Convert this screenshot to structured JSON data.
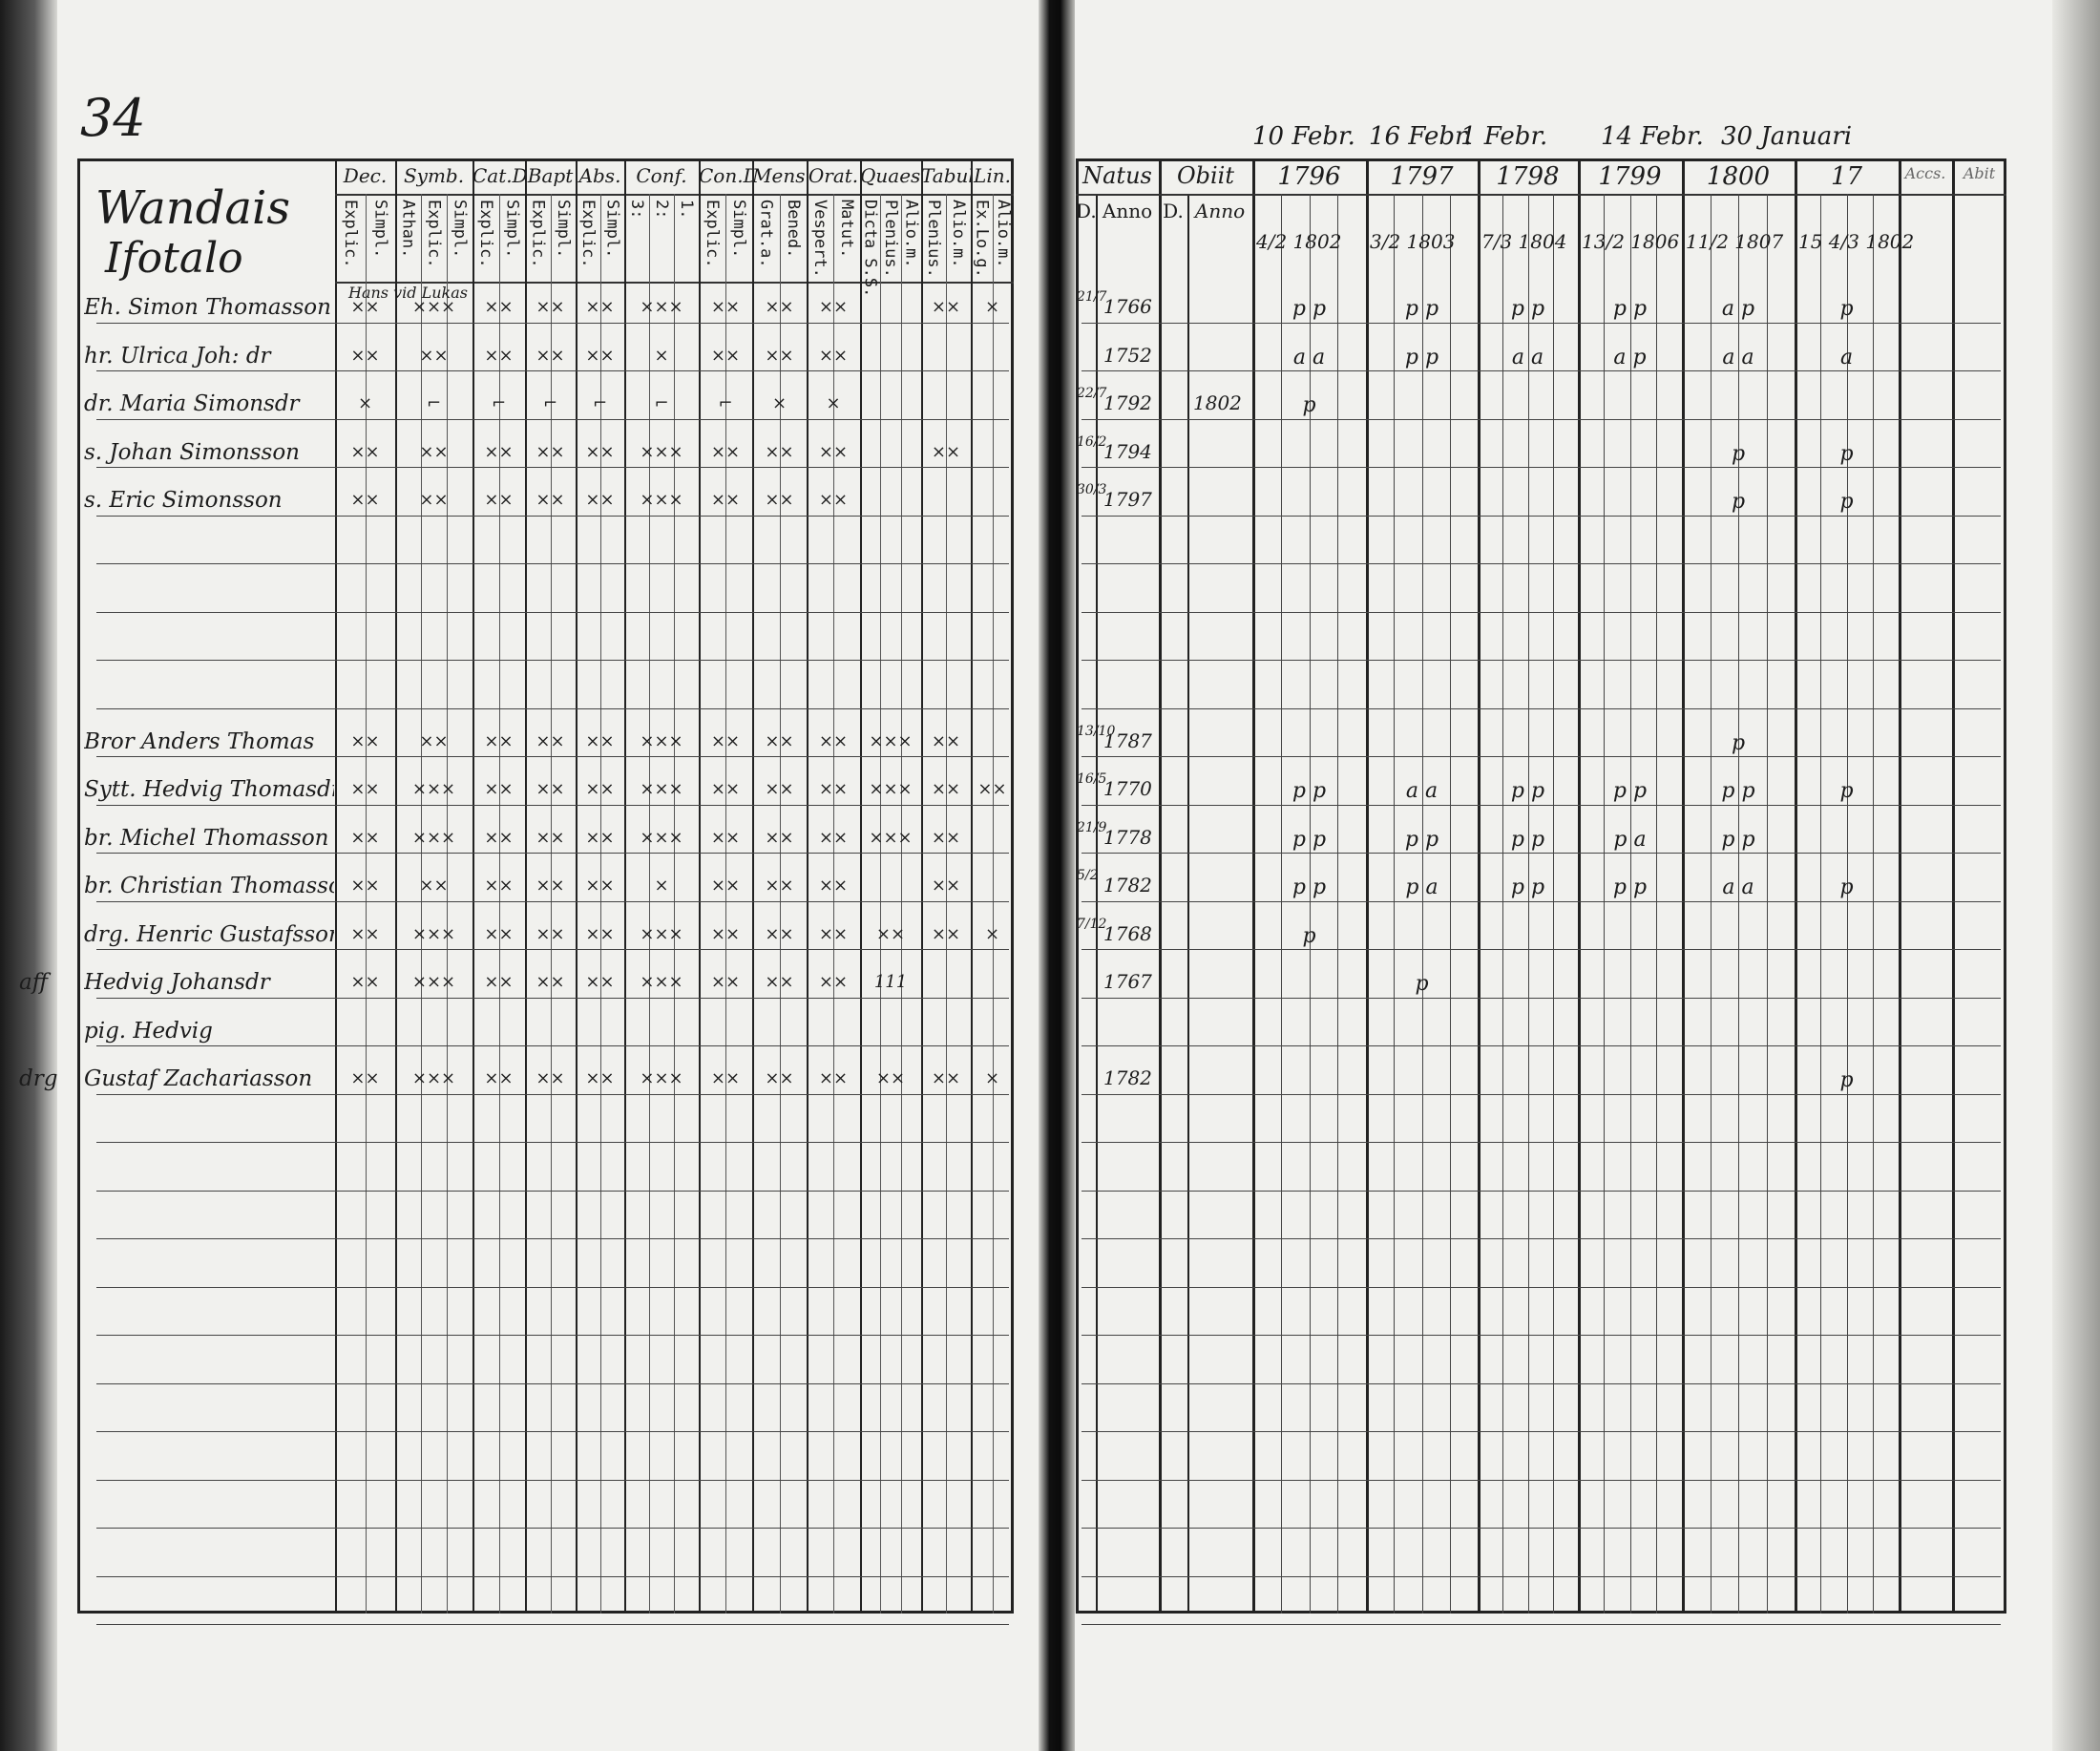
{
  "page_number": "34",
  "left": {
    "title": [
      "Wandais",
      "Ifotalo"
    ],
    "columns": [
      {
        "label": "Dec.",
        "subs": [
          "Explic.",
          "Simpl."
        ]
      },
      {
        "label": "Symb.",
        "subs": [
          "Athan.",
          "Explic.",
          "Simpl."
        ]
      },
      {
        "label": "Cat.D",
        "subs": [
          "Explic.",
          "Simpl."
        ]
      },
      {
        "label": "Bapt",
        "subs": [
          "Explic.",
          "Simpl."
        ]
      },
      {
        "label": "Abs.",
        "subs": [
          "Explic.",
          "Simpl."
        ]
      },
      {
        "label": "Conf.",
        "subs": [
          "3:",
          "2:",
          "1."
        ]
      },
      {
        "label": "Con.D",
        "subs": [
          "Explic.",
          "Simpl."
        ]
      },
      {
        "label": "Mens.",
        "subs": [
          "Grat.a.",
          "Bened."
        ]
      },
      {
        "label": "Orat.",
        "subs": [
          "Vespert.",
          "Matut."
        ]
      },
      {
        "label": "Quaest.",
        "subs": [
          "Dicta S.S.",
          "Plenius.",
          "Alio.m."
        ]
      },
      {
        "label": "Tabul.",
        "subs": [
          "Plenius.",
          "Alio.m."
        ]
      },
      {
        "label": "Lin.",
        "subs": [
          "Ex.Lo.g.",
          "Alio.m."
        ]
      }
    ],
    "note_row0": "Hans vid Lukas",
    "rows": [
      {
        "margin": "",
        "name": "Eh. Simon Thomasson",
        "marks": [
          "××",
          "×××",
          "××",
          "××",
          "××",
          "×××",
          "××",
          "××",
          "××",
          "",
          "××",
          "×"
        ]
      },
      {
        "margin": "",
        "name": "hr. Ulrica Joh: dr",
        "marks": [
          "××",
          "××",
          "××",
          "××",
          "××",
          "×",
          "××",
          "××",
          "××",
          "",
          "",
          ""
        ]
      },
      {
        "margin": "",
        "name": "dr. Maria Simonsdr",
        "marks": [
          "×",
          "⌐",
          "⌐",
          "⌐",
          "⌐",
          "⌐",
          "⌐",
          "×",
          "×",
          "",
          "",
          ""
        ]
      },
      {
        "margin": "",
        "name": "s. Johan Simonsson",
        "marks": [
          "××",
          "××",
          "××",
          "××",
          "××",
          "×××",
          "××",
          "××",
          "××",
          "",
          "××",
          ""
        ]
      },
      {
        "margin": "",
        "name": "s. Eric Simonsson",
        "marks": [
          "××",
          "××",
          "××",
          "××",
          "××",
          "×××",
          "××",
          "××",
          "××",
          "",
          "",
          ""
        ]
      },
      {
        "margin": "",
        "name": "",
        "marks": []
      },
      {
        "margin": "",
        "name": "",
        "marks": []
      },
      {
        "margin": "",
        "name": "",
        "marks": []
      },
      {
        "margin": "",
        "name": "",
        "marks": []
      },
      {
        "margin": "",
        "name": "Bror Anders Thomas",
        "marks": [
          "××",
          "××",
          "××",
          "××",
          "××",
          "×××",
          "××",
          "××",
          "××",
          "×××",
          "××",
          ""
        ]
      },
      {
        "margin": "",
        "name": "Sytt. Hedvig Thomasdr",
        "marks": [
          "××",
          "×××",
          "××",
          "××",
          "××",
          "×××",
          "××",
          "××",
          "××",
          "×××",
          "××",
          "××"
        ]
      },
      {
        "margin": "",
        "name": "br. Michel Thomasson",
        "marks": [
          "××",
          "×××",
          "××",
          "××",
          "××",
          "×××",
          "××",
          "××",
          "××",
          "×××",
          "××",
          ""
        ]
      },
      {
        "margin": "",
        "name": "br. Christian Thomasson",
        "marks": [
          "××",
          "××",
          "××",
          "××",
          "××",
          "×",
          "××",
          "××",
          "××",
          "",
          "××",
          ""
        ]
      },
      {
        "margin": "",
        "name": "drg. Henric Gustafsson",
        "marks": [
          "××",
          "×××",
          "××",
          "××",
          "××",
          "×××",
          "××",
          "××",
          "××",
          "××",
          "××",
          "×"
        ]
      },
      {
        "margin": "aff",
        "name": "Hedvig Johansdr",
        "marks": [
          "××",
          "×××",
          "××",
          "××",
          "××",
          "×××",
          "××",
          "××",
          "××",
          "111",
          "",
          ""
        ]
      },
      {
        "margin": "",
        "name": "pig. Hedvig",
        "marks": []
      },
      {
        "margin": "drg",
        "name": "Gustaf Zachariasson",
        "marks": [
          "××",
          "×××",
          "××",
          "××",
          "××",
          "×××",
          "××",
          "××",
          "××",
          "××",
          "××",
          "×"
        ]
      }
    ]
  },
  "right": {
    "dates_above": [
      "10 Febr.",
      "16 Febr.",
      "1 Febr.",
      "14 Febr.",
      "30 Januari"
    ],
    "natus_label": "Natus",
    "obiit_label": "Obiit",
    "d_label": "D.",
    "anno_label": "Anno",
    "years": [
      {
        "label": "1796",
        "sub": "4/2 1802"
      },
      {
        "label": "1797",
        "sub": "3/2 1803"
      },
      {
        "label": "1798",
        "sub": "7/3 1804"
      },
      {
        "label": "1799",
        "sub": "13/2 1806"
      },
      {
        "label": "1800",
        "sub": "11/2 1807"
      },
      {
        "label": "17",
        "sub": "15 4/3 1802"
      }
    ],
    "accs_label": "Accs.",
    "abit_label": "Abit",
    "rows": [
      {
        "natus_d": "21/7",
        "natus_anno": "1766",
        "obit_anno": "",
        "marks": [
          "p p",
          "p p",
          "p p",
          "p p",
          "a p",
          "p"
        ]
      },
      {
        "natus_d": "",
        "natus_anno": "1752",
        "obit_anno": "",
        "marks": [
          "a a",
          "p p",
          "a a",
          "a p",
          "a a",
          "a"
        ]
      },
      {
        "natus_d": "22/7",
        "natus_anno": "1792",
        "obit_anno": "1802",
        "marks": [
          "p",
          "",
          "",
          "",
          "",
          ""
        ]
      },
      {
        "natus_d": "16/2",
        "natus_anno": "1794",
        "obit_anno": "",
        "marks": [
          "",
          "",
          "",
          "",
          "p",
          "p"
        ]
      },
      {
        "natus_d": "30/3",
        "natus_anno": "1797",
        "obit_anno": "",
        "marks": [
          "",
          "",
          "",
          "",
          "p",
          "p"
        ]
      },
      {
        "natus_d": "",
        "natus_anno": "",
        "obit_anno": "",
        "marks": []
      },
      {
        "natus_d": "",
        "natus_anno": "",
        "obit_anno": "",
        "marks": []
      },
      {
        "natus_d": "",
        "natus_anno": "",
        "obit_anno": "",
        "marks": []
      },
      {
        "natus_d": "",
        "natus_anno": "",
        "obit_anno": "",
        "marks": []
      },
      {
        "natus_d": "13/10",
        "natus_anno": "1787",
        "obit_anno": "",
        "marks": [
          "",
          "",
          "",
          "",
          "p",
          ""
        ]
      },
      {
        "natus_d": "16/5",
        "natus_anno": "1770",
        "obit_anno": "",
        "marks": [
          "p p",
          "a a",
          "p p",
          "p p",
          "p p",
          "p"
        ]
      },
      {
        "natus_d": "21/9",
        "natus_anno": "1778",
        "obit_anno": "",
        "marks": [
          "p p",
          "p p",
          "p p",
          "p a",
          "p p",
          ""
        ]
      },
      {
        "natus_d": "5/2",
        "natus_anno": "1782",
        "obit_anno": "",
        "marks": [
          "p p",
          "p a",
          "p p",
          "p p",
          "a a",
          "p"
        ]
      },
      {
        "natus_d": "7/12",
        "natus_anno": "1768",
        "obit_anno": "",
        "marks": [
          "p",
          "",
          "",
          "",
          "",
          ""
        ]
      },
      {
        "natus_d": "",
        "natus_anno": "1767",
        "obit_anno": "",
        "marks": [
          "",
          "p",
          "",
          "",
          "",
          ""
        ]
      },
      {
        "natus_d": "",
        "natus_anno": "",
        "obit_anno": "",
        "marks": []
      },
      {
        "natus_d": "",
        "natus_anno": "1782",
        "obit_anno": "",
        "marks": [
          "",
          "",
          "",
          "",
          "",
          "p"
        ]
      }
    ]
  }
}
